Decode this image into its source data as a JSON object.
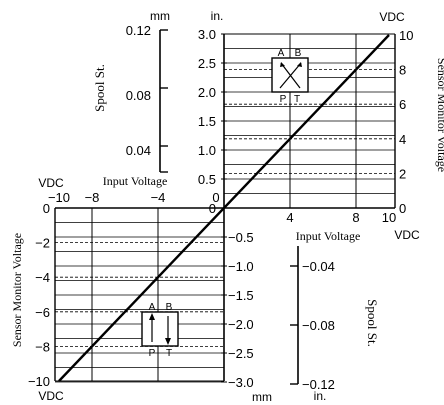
{
  "chart_data": {
    "type": "line",
    "title": "",
    "series": [
      {
        "values": [
          {
            "x": -10,
            "y": -10
          },
          {
            "x": 10,
            "y": 10
          }
        ]
      }
    ],
    "x_axis_label": "Input Voltage",
    "x_axis_unit": "VDC",
    "x_ticks_positive": [
      "4",
      "8",
      "10"
    ],
    "x_ticks_negative": [
      "−10",
      "−8",
      "−4",
      "0"
    ],
    "y_axis_label": "Sensor Monitor Voltage",
    "y_axis_unit": "VDC",
    "y_ticks_positive": [
      "10",
      "8",
      "6",
      "4",
      "2",
      "0"
    ],
    "y_ticks_negative": [
      "0",
      "−2",
      "−4",
      "−6",
      "−8",
      "−10"
    ],
    "xlim": [
      -10,
      10
    ],
    "ylim": [
      -10,
      10
    ],
    "spool_stroke_label": "Spool St.",
    "in_unit": "in.",
    "mm_unit": "mm",
    "in_ticks_positive": [
      "3.0",
      "2.5",
      "2.0",
      "1.5",
      "1.0",
      "0.5",
      "0"
    ],
    "in_ticks_negative": [
      "−0.5",
      "−1.0",
      "−1.5",
      "−2.0",
      "−2.5",
      "−3.0"
    ],
    "spool_ticks_positive": [
      "0.12",
      "0.08",
      "0.04"
    ],
    "spool_ticks_negative": [
      "−0.04",
      "−0.08",
      "−0.12"
    ],
    "valve_port_labels": {
      "a": "A",
      "b": "B",
      "p": "P",
      "t": "T"
    }
  }
}
